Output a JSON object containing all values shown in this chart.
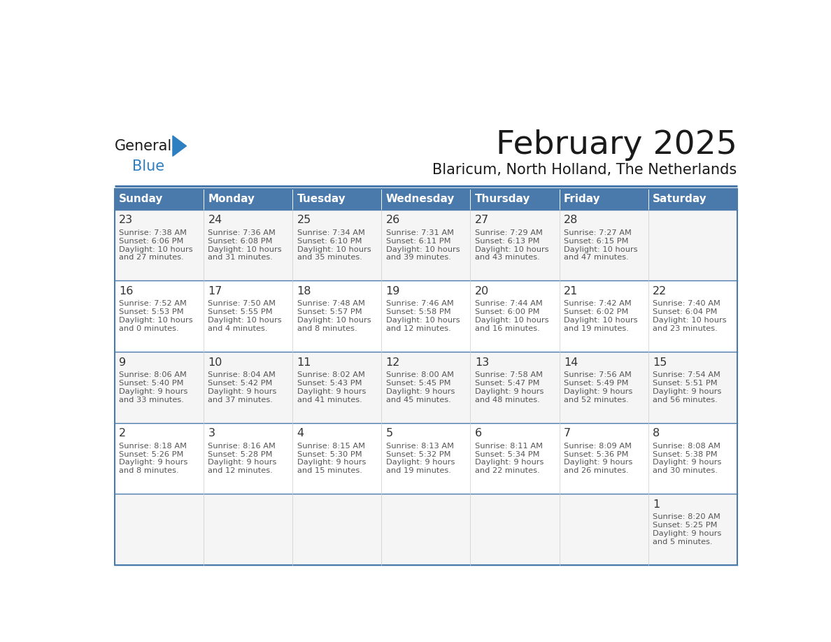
{
  "title": "February 2025",
  "subtitle": "Blaricum, North Holland, The Netherlands",
  "header_color": "#4a7aac",
  "header_text_color": "#ffffff",
  "cell_bg": "#ffffff",
  "day_headers": [
    "Sunday",
    "Monday",
    "Tuesday",
    "Wednesday",
    "Thursday",
    "Friday",
    "Saturday"
  ],
  "title_color": "#1a1a1a",
  "subtitle_color": "#1a1a1a",
  "line_color": "#4a7aac",
  "text_color": "#555555",
  "days": [
    {
      "date": 1,
      "col": 6,
      "row": 0,
      "sunrise": "8:20 AM",
      "sunset": "5:25 PM",
      "daylight_h": "9 hours",
      "daylight_m": "5 minutes"
    },
    {
      "date": 2,
      "col": 0,
      "row": 1,
      "sunrise": "8:18 AM",
      "sunset": "5:26 PM",
      "daylight_h": "9 hours",
      "daylight_m": "8 minutes"
    },
    {
      "date": 3,
      "col": 1,
      "row": 1,
      "sunrise": "8:16 AM",
      "sunset": "5:28 PM",
      "daylight_h": "9 hours",
      "daylight_m": "12 minutes"
    },
    {
      "date": 4,
      "col": 2,
      "row": 1,
      "sunrise": "8:15 AM",
      "sunset": "5:30 PM",
      "daylight_h": "9 hours",
      "daylight_m": "15 minutes"
    },
    {
      "date": 5,
      "col": 3,
      "row": 1,
      "sunrise": "8:13 AM",
      "sunset": "5:32 PM",
      "daylight_h": "9 hours",
      "daylight_m": "19 minutes"
    },
    {
      "date": 6,
      "col": 4,
      "row": 1,
      "sunrise": "8:11 AM",
      "sunset": "5:34 PM",
      "daylight_h": "9 hours",
      "daylight_m": "22 minutes"
    },
    {
      "date": 7,
      "col": 5,
      "row": 1,
      "sunrise": "8:09 AM",
      "sunset": "5:36 PM",
      "daylight_h": "9 hours",
      "daylight_m": "26 minutes"
    },
    {
      "date": 8,
      "col": 6,
      "row": 1,
      "sunrise": "8:08 AM",
      "sunset": "5:38 PM",
      "daylight_h": "9 hours",
      "daylight_m": "30 minutes"
    },
    {
      "date": 9,
      "col": 0,
      "row": 2,
      "sunrise": "8:06 AM",
      "sunset": "5:40 PM",
      "daylight_h": "9 hours",
      "daylight_m": "33 minutes"
    },
    {
      "date": 10,
      "col": 1,
      "row": 2,
      "sunrise": "8:04 AM",
      "sunset": "5:42 PM",
      "daylight_h": "9 hours",
      "daylight_m": "37 minutes"
    },
    {
      "date": 11,
      "col": 2,
      "row": 2,
      "sunrise": "8:02 AM",
      "sunset": "5:43 PM",
      "daylight_h": "9 hours",
      "daylight_m": "41 minutes"
    },
    {
      "date": 12,
      "col": 3,
      "row": 2,
      "sunrise": "8:00 AM",
      "sunset": "5:45 PM",
      "daylight_h": "9 hours",
      "daylight_m": "45 minutes"
    },
    {
      "date": 13,
      "col": 4,
      "row": 2,
      "sunrise": "7:58 AM",
      "sunset": "5:47 PM",
      "daylight_h": "9 hours",
      "daylight_m": "48 minutes"
    },
    {
      "date": 14,
      "col": 5,
      "row": 2,
      "sunrise": "7:56 AM",
      "sunset": "5:49 PM",
      "daylight_h": "9 hours",
      "daylight_m": "52 minutes"
    },
    {
      "date": 15,
      "col": 6,
      "row": 2,
      "sunrise": "7:54 AM",
      "sunset": "5:51 PM",
      "daylight_h": "9 hours",
      "daylight_m": "56 minutes"
    },
    {
      "date": 16,
      "col": 0,
      "row": 3,
      "sunrise": "7:52 AM",
      "sunset": "5:53 PM",
      "daylight_h": "10 hours",
      "daylight_m": "0 minutes"
    },
    {
      "date": 17,
      "col": 1,
      "row": 3,
      "sunrise": "7:50 AM",
      "sunset": "5:55 PM",
      "daylight_h": "10 hours",
      "daylight_m": "4 minutes"
    },
    {
      "date": 18,
      "col": 2,
      "row": 3,
      "sunrise": "7:48 AM",
      "sunset": "5:57 PM",
      "daylight_h": "10 hours",
      "daylight_m": "8 minutes"
    },
    {
      "date": 19,
      "col": 3,
      "row": 3,
      "sunrise": "7:46 AM",
      "sunset": "5:58 PM",
      "daylight_h": "10 hours",
      "daylight_m": "12 minutes"
    },
    {
      "date": 20,
      "col": 4,
      "row": 3,
      "sunrise": "7:44 AM",
      "sunset": "6:00 PM",
      "daylight_h": "10 hours",
      "daylight_m": "16 minutes"
    },
    {
      "date": 21,
      "col": 5,
      "row": 3,
      "sunrise": "7:42 AM",
      "sunset": "6:02 PM",
      "daylight_h": "10 hours",
      "daylight_m": "19 minutes"
    },
    {
      "date": 22,
      "col": 6,
      "row": 3,
      "sunrise": "7:40 AM",
      "sunset": "6:04 PM",
      "daylight_h": "10 hours",
      "daylight_m": "23 minutes"
    },
    {
      "date": 23,
      "col": 0,
      "row": 4,
      "sunrise": "7:38 AM",
      "sunset": "6:06 PM",
      "daylight_h": "10 hours",
      "daylight_m": "27 minutes"
    },
    {
      "date": 24,
      "col": 1,
      "row": 4,
      "sunrise": "7:36 AM",
      "sunset": "6:08 PM",
      "daylight_h": "10 hours",
      "daylight_m": "31 minutes"
    },
    {
      "date": 25,
      "col": 2,
      "row": 4,
      "sunrise": "7:34 AM",
      "sunset": "6:10 PM",
      "daylight_h": "10 hours",
      "daylight_m": "35 minutes"
    },
    {
      "date": 26,
      "col": 3,
      "row": 4,
      "sunrise": "7:31 AM",
      "sunset": "6:11 PM",
      "daylight_h": "10 hours",
      "daylight_m": "39 minutes"
    },
    {
      "date": 27,
      "col": 4,
      "row": 4,
      "sunrise": "7:29 AM",
      "sunset": "6:13 PM",
      "daylight_h": "10 hours",
      "daylight_m": "43 minutes"
    },
    {
      "date": 28,
      "col": 5,
      "row": 4,
      "sunrise": "7:27 AM",
      "sunset": "6:15 PM",
      "daylight_h": "10 hours",
      "daylight_m": "47 minutes"
    }
  ],
  "num_rows": 5,
  "num_cols": 7,
  "logo_text1": "General",
  "logo_text2": "Blue",
  "logo_color1": "#1a1a1a",
  "logo_color2": "#2e7fc1",
  "logo_triangle_color": "#2e7fc1",
  "fig_width": 11.88,
  "fig_height": 9.18
}
